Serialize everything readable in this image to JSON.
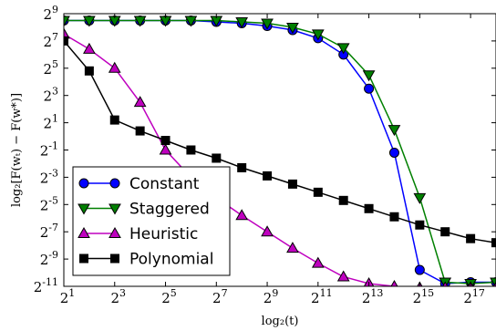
{
  "chart_data": {
    "type": "line",
    "title": "",
    "xlabel": "log₂(t)",
    "ylabel": "log₂[F(wₜ) − F(w*)]",
    "x_scale": "log2",
    "y_scale": "log2",
    "xlim_exp": [
      1,
      18
    ],
    "ylim_exp": [
      -11,
      9
    ],
    "x_ticks": [
      {
        "exp": 1,
        "base": "2",
        "sup": "1"
      },
      {
        "exp": 3,
        "base": "2",
        "sup": "3"
      },
      {
        "exp": 5,
        "base": "2",
        "sup": "5"
      },
      {
        "exp": 7,
        "base": "2",
        "sup": "7"
      },
      {
        "exp": 9,
        "base": "2",
        "sup": "9"
      },
      {
        "exp": 11,
        "base": "2",
        "sup": "11"
      },
      {
        "exp": 13,
        "base": "2",
        "sup": "13"
      },
      {
        "exp": 15,
        "base": "2",
        "sup": "15"
      },
      {
        "exp": 17,
        "base": "2",
        "sup": "17"
      }
    ],
    "y_ticks": [
      {
        "exp": 9,
        "base": "2",
        "sup": "9"
      },
      {
        "exp": 7,
        "base": "2",
        "sup": "7"
      },
      {
        "exp": 5,
        "base": "2",
        "sup": "5"
      },
      {
        "exp": 3,
        "base": "2",
        "sup": "3"
      },
      {
        "exp": 1,
        "base": "2",
        "sup": "1"
      },
      {
        "exp": -1,
        "base": "2",
        "sup": "-1"
      },
      {
        "exp": -3,
        "base": "2",
        "sup": "-3"
      },
      {
        "exp": -5,
        "base": "2",
        "sup": "-5"
      },
      {
        "exp": -7,
        "base": "2",
        "sup": "-7"
      },
      {
        "exp": -9,
        "base": "2",
        "sup": "-9"
      },
      {
        "exp": -11,
        "base": "2",
        "sup": "-11"
      }
    ],
    "grid": false,
    "legend_position": "bottom-left",
    "series": [
      {
        "name": "Constant",
        "color": "#0000ff",
        "marker": "circle",
        "points": [
          [
            1,
            8.5
          ],
          [
            2,
            8.5
          ],
          [
            3,
            8.5
          ],
          [
            4,
            8.5
          ],
          [
            5,
            8.5
          ],
          [
            6,
            8.5
          ],
          [
            7,
            8.4
          ],
          [
            8,
            8.3
          ],
          [
            9,
            8.1
          ],
          [
            10,
            7.8
          ],
          [
            11,
            7.2
          ],
          [
            12,
            6.0
          ],
          [
            13,
            3.5
          ],
          [
            14,
            -1.2
          ],
          [
            15,
            -9.8
          ],
          [
            16,
            -10.8
          ],
          [
            17,
            -10.7
          ],
          [
            18,
            -10.7
          ]
        ]
      },
      {
        "name": "Staggered",
        "color": "#008000",
        "marker": "triangle-down",
        "points": [
          [
            1,
            8.5
          ],
          [
            2,
            8.5
          ],
          [
            3,
            8.5
          ],
          [
            4,
            8.5
          ],
          [
            5,
            8.5
          ],
          [
            6,
            8.5
          ],
          [
            7,
            8.5
          ],
          [
            8,
            8.4
          ],
          [
            9,
            8.3
          ],
          [
            10,
            8.0
          ],
          [
            11,
            7.5
          ],
          [
            12,
            6.5
          ],
          [
            13,
            4.5
          ],
          [
            14,
            0.5
          ],
          [
            15,
            -4.5
          ],
          [
            16,
            -10.7
          ],
          [
            17,
            -10.8
          ],
          [
            18,
            -10.7
          ]
        ]
      },
      {
        "name": "Heuristic",
        "color": "#bf00bf",
        "marker": "triangle-up",
        "points": [
          [
            1,
            7.5
          ],
          [
            2,
            6.4
          ],
          [
            3,
            5.0
          ],
          [
            4,
            2.5
          ],
          [
            5,
            -1.0
          ],
          [
            6,
            -3.0
          ],
          [
            7,
            -4.5
          ],
          [
            8,
            -5.8
          ],
          [
            9,
            -7.0
          ],
          [
            10,
            -8.2
          ],
          [
            11,
            -9.3
          ],
          [
            12,
            -10.3
          ],
          [
            13,
            -10.8
          ],
          [
            14,
            -11.0
          ],
          [
            15,
            -11.1
          ],
          [
            16,
            -11.1
          ],
          [
            17,
            -11.1
          ],
          [
            18,
            -11.1
          ]
        ]
      },
      {
        "name": "Polynomial",
        "color": "#000000",
        "marker": "square",
        "points": [
          [
            1,
            7.0
          ],
          [
            2,
            4.8
          ],
          [
            3,
            1.2
          ],
          [
            4,
            0.4
          ],
          [
            5,
            -0.3
          ],
          [
            6,
            -1.0
          ],
          [
            7,
            -1.6
          ],
          [
            8,
            -2.3
          ],
          [
            9,
            -2.9
          ],
          [
            10,
            -3.5
          ],
          [
            11,
            -4.1
          ],
          [
            12,
            -4.7
          ],
          [
            13,
            -5.3
          ],
          [
            14,
            -5.9
          ],
          [
            15,
            -6.5
          ],
          [
            16,
            -7.0
          ],
          [
            17,
            -7.5
          ],
          [
            18,
            -7.8
          ]
        ]
      }
    ]
  }
}
